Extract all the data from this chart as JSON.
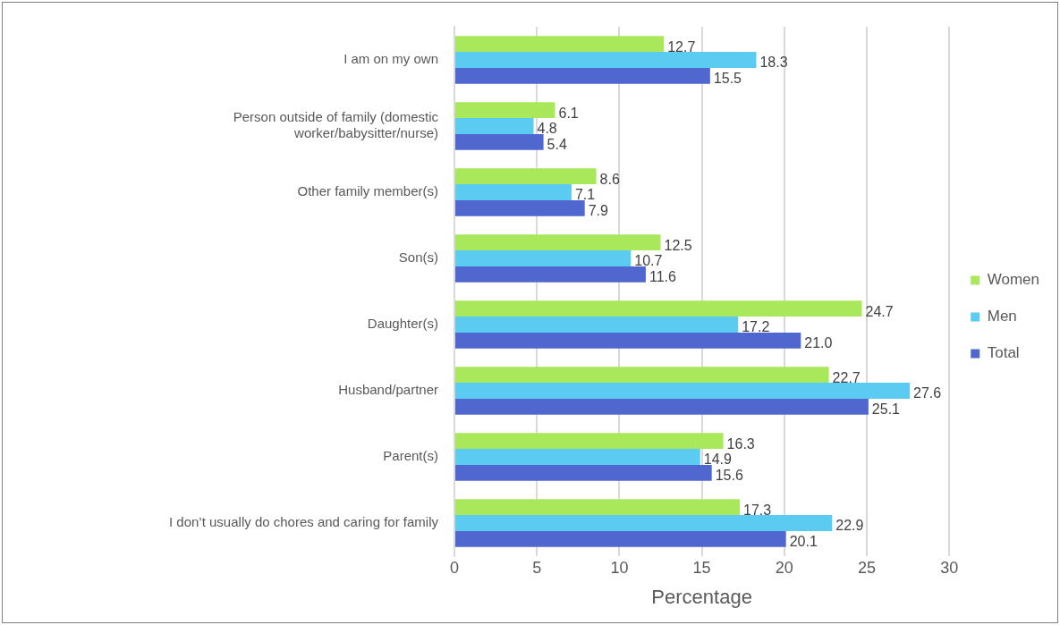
{
  "chart_data": {
    "type": "bar",
    "orientation": "horizontal",
    "xlabel": "Percentage",
    "categories": [
      "I am on my own",
      "Person outside of family (domestic worker/babysitter/nurse)",
      "Other family member(s)",
      "Son(s)",
      "Daughter(s)",
      "Husband/partner",
      "Parent(s)",
      "I don’t usually do chores and caring for family"
    ],
    "series": [
      {
        "name": "Women",
        "color": "#a9e85a",
        "values": [
          12.7,
          6.1,
          8.6,
          12.5,
          24.7,
          22.7,
          16.3,
          17.3
        ],
        "value_labels": [
          "12.7",
          "6.1",
          "8.6",
          "12.5",
          "24.7",
          "22.7",
          "16.3",
          "17.3"
        ]
      },
      {
        "name": "Men",
        "color": "#5bcbf1",
        "values": [
          18.3,
          4.8,
          7.1,
          10.7,
          17.2,
          27.6,
          14.9,
          22.9
        ],
        "value_labels": [
          "18.3",
          "4.8",
          "7.1",
          "10.7",
          "17.2",
          "27.6",
          "14.9",
          "22.9"
        ]
      },
      {
        "name": "Total",
        "color": "#4f67cf",
        "values": [
          15.5,
          5.4,
          7.9,
          11.6,
          21.0,
          25.1,
          15.6,
          20.1
        ],
        "value_labels": [
          "15.5",
          "5.4",
          "7.9",
          "11.6",
          "21.0",
          "25.1",
          "15.6",
          "20.1"
        ]
      }
    ],
    "xlim": [
      0,
      30
    ],
    "xticks": [
      0,
      5,
      10,
      15,
      20,
      25,
      30
    ],
    "grid": "x",
    "legend": "right"
  }
}
